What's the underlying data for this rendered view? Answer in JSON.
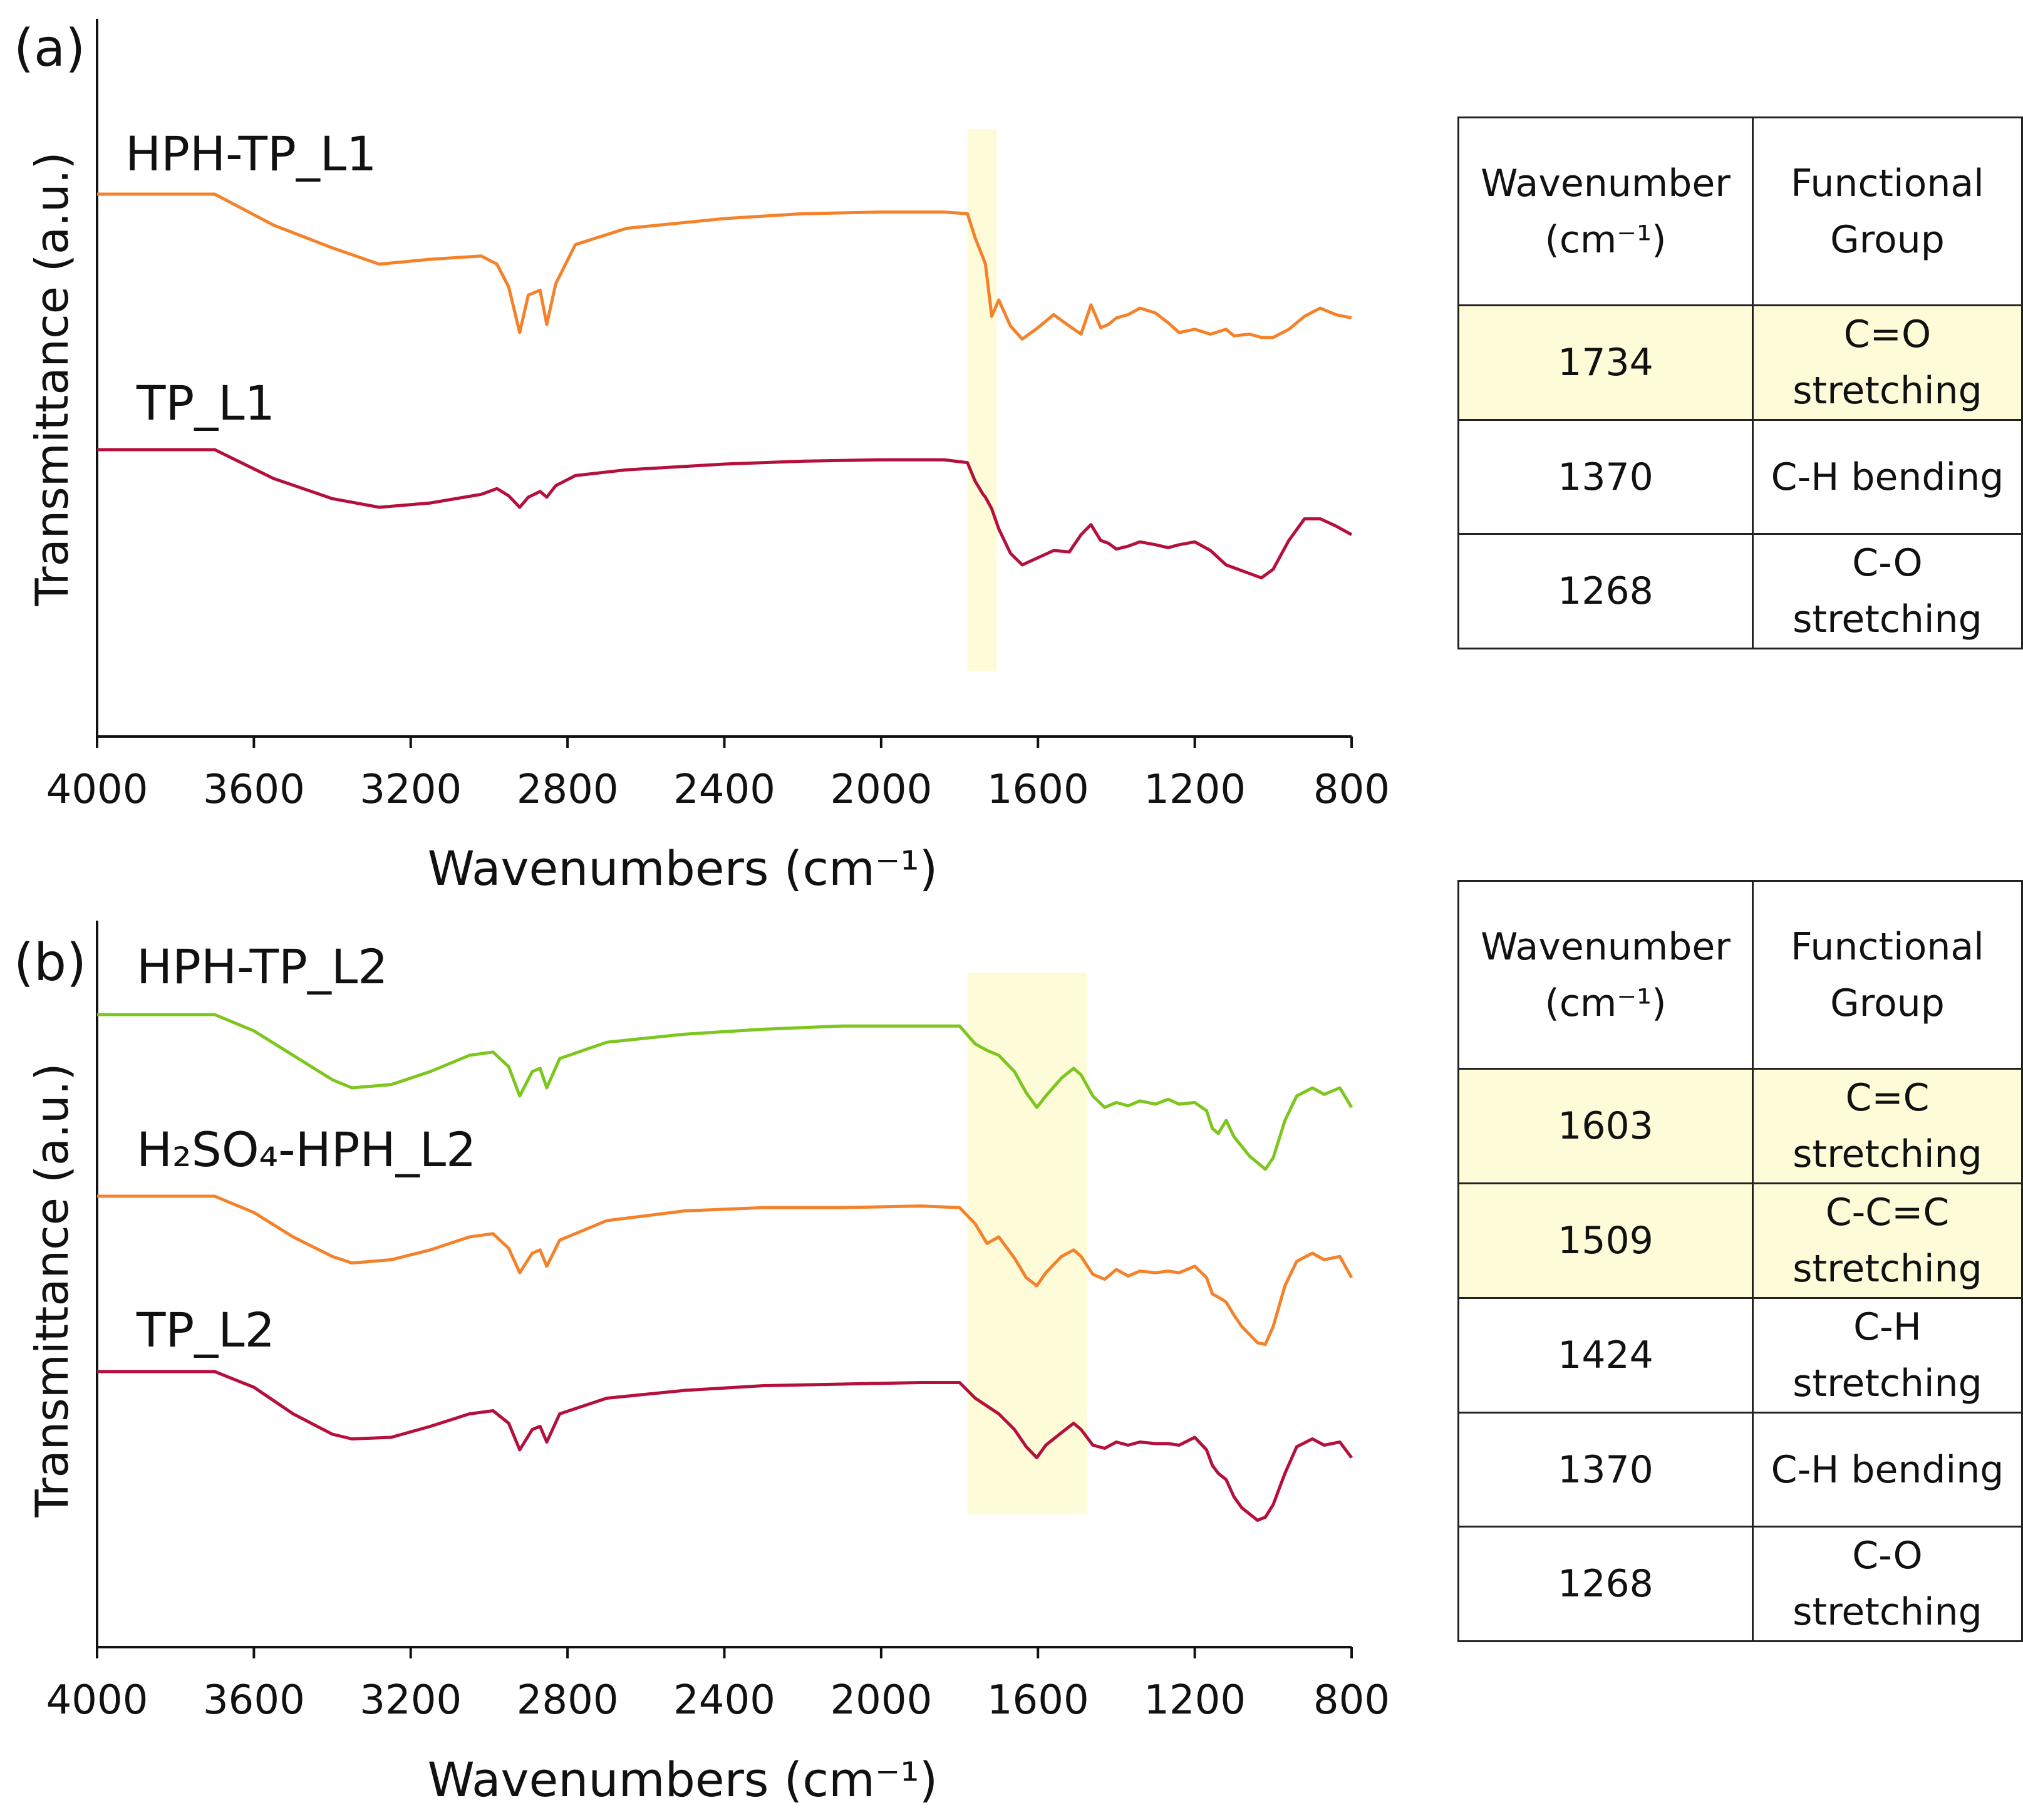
{
  "panels": [
    {
      "label": "(a)",
      "ylabel": "Transmittance (a.u.)",
      "xlabel": "Wavenumbers (cm⁻¹)",
      "xlim": [
        4000,
        800
      ],
      "xticks": [
        "4000",
        "3600",
        "3200",
        "2800",
        "2400",
        "2000",
        "1600",
        "1200",
        "800"
      ],
      "highlight_band": [
        1780,
        1705
      ],
      "series": [
        {
          "name": "HPH-TP_L1",
          "color": "#F5822A"
        },
        {
          "name": "TP_L1",
          "color": "#B5103C"
        }
      ],
      "table": {
        "header": [
          "Wavenumber (cm⁻¹)",
          "Functional Group"
        ],
        "rows": [
          {
            "wavenumber": "1734",
            "group": "C=O stretching",
            "highlight": true
          },
          {
            "wavenumber": "1370",
            "group": "C-H bending",
            "highlight": false
          },
          {
            "wavenumber": "1268",
            "group": "C-O stretching",
            "highlight": false
          }
        ]
      }
    },
    {
      "label": "(b)",
      "ylabel": "Transmittance (a.u.)",
      "xlabel": "Wavenumbers (cm⁻¹)",
      "xlim": [
        4000,
        800
      ],
      "xticks": [
        "4000",
        "3600",
        "3200",
        "2800",
        "2400",
        "2000",
        "1600",
        "1200",
        "800"
      ],
      "highlight_band": [
        1780,
        1475
      ],
      "series": [
        {
          "name": "HPH-TP_L2",
          "color": "#7DC61E"
        },
        {
          "name": "H₂SO₄-HPH_L2",
          "color": "#F5822A"
        },
        {
          "name": "TP_L2",
          "color": "#B5103C"
        }
      ],
      "table": {
        "header": [
          "Wavenumber (cm⁻¹)",
          "Functional Group"
        ],
        "rows": [
          {
            "wavenumber": "1603",
            "group": "C=C stretching",
            "highlight": true
          },
          {
            "wavenumber": "1509",
            "group": "C-C=C stretching",
            "highlight": true
          },
          {
            "wavenumber": "1424",
            "group": "C-H stretching",
            "highlight": false
          },
          {
            "wavenumber": "1370",
            "group": "C-H bending",
            "highlight": false
          },
          {
            "wavenumber": "1268",
            "group": "C-O stretching",
            "highlight": false
          }
        ]
      }
    }
  ],
  "chart_data": [
    {
      "type": "line",
      "title": "(a)",
      "xlabel": "Wavenumbers (cm⁻¹)",
      "ylabel": "Transmittance (a.u.)",
      "xlim": [
        4000,
        800
      ],
      "yunits": "arbitrary (stacked, offset traces)",
      "series": [
        {
          "name": "HPH-TP_L1",
          "x": [
            4000,
            3700,
            3550,
            3400,
            3280,
            3150,
            3020,
            2980,
            2950,
            2922,
            2900,
            2870,
            2853,
            2830,
            2780,
            2650,
            2400,
            2200,
            2000,
            1840,
            1780,
            1760,
            1740,
            1734,
            1718,
            1700,
            1670,
            1640,
            1600,
            1560,
            1520,
            1490,
            1465,
            1440,
            1420,
            1400,
            1370,
            1340,
            1300,
            1268,
            1240,
            1200,
            1160,
            1120,
            1100,
            1060,
            1030,
            1000,
            960,
            920,
            880,
            840,
            800
          ],
          "y": [
            0.95,
            0.95,
            0.76,
            0.62,
            0.52,
            0.55,
            0.57,
            0.52,
            0.38,
            0.1,
            0.33,
            0.36,
            0.15,
            0.4,
            0.64,
            0.74,
            0.8,
            0.83,
            0.84,
            0.84,
            0.83,
            0.68,
            0.56,
            0.52,
            0.2,
            0.3,
            0.14,
            0.06,
            0.13,
            0.21,
            0.14,
            0.09,
            0.27,
            0.13,
            0.15,
            0.19,
            0.21,
            0.25,
            0.22,
            0.16,
            0.1,
            0.12,
            0.09,
            0.12,
            0.08,
            0.09,
            0.07,
            0.07,
            0.12,
            0.2,
            0.25,
            0.21,
            0.19
          ]
        },
        {
          "name": "TP_L1",
          "x": [
            4000,
            3700,
            3550,
            3400,
            3280,
            3150,
            3020,
            2980,
            2950,
            2922,
            2900,
            2870,
            2853,
            2830,
            2780,
            2650,
            2400,
            2200,
            2000,
            1840,
            1780,
            1760,
            1740,
            1734,
            1718,
            1700,
            1670,
            1640,
            1600,
            1560,
            1520,
            1490,
            1465,
            1440,
            1420,
            1400,
            1370,
            1340,
            1300,
            1268,
            1240,
            1200,
            1160,
            1120,
            1100,
            1060,
            1030,
            1000,
            960,
            920,
            880,
            840,
            800
          ],
          "y": [
            0.95,
            0.95,
            0.75,
            0.61,
            0.55,
            0.58,
            0.64,
            0.68,
            0.63,
            0.55,
            0.62,
            0.66,
            0.62,
            0.7,
            0.77,
            0.81,
            0.85,
            0.87,
            0.88,
            0.88,
            0.86,
            0.73,
            0.64,
            0.62,
            0.54,
            0.4,
            0.23,
            0.15,
            0.2,
            0.25,
            0.24,
            0.36,
            0.43,
            0.32,
            0.3,
            0.26,
            0.28,
            0.31,
            0.29,
            0.27,
            0.29,
            0.31,
            0.25,
            0.15,
            0.13,
            0.09,
            0.06,
            0.12,
            0.32,
            0.47,
            0.47,
            0.42,
            0.36
          ]
        }
      ]
    },
    {
      "type": "line",
      "title": "(b)",
      "xlabel": "Wavenumbers (cm⁻¹)",
      "ylabel": "Transmittance (a.u.)",
      "xlim": [
        4000,
        800
      ],
      "yunits": "arbitrary (stacked, offset traces)",
      "series": [
        {
          "name": "HPH-TP_L2",
          "x": [
            4000,
            3700,
            3600,
            3500,
            3400,
            3350,
            3250,
            3150,
            3050,
            2990,
            2950,
            2922,
            2890,
            2870,
            2853,
            2820,
            2700,
            2500,
            2300,
            2100,
            1900,
            1800,
            1760,
            1730,
            1700,
            1660,
            1630,
            1603,
            1580,
            1540,
            1509,
            1490,
            1460,
            1430,
            1400,
            1370,
            1340,
            1300,
            1268,
            1240,
            1200,
            1170,
            1155,
            1140,
            1120,
            1100,
            1080,
            1060,
            1040,
            1020,
            1000,
            970,
            940,
            900,
            870,
            830,
            800
          ],
          "y": [
            0.95,
            0.95,
            0.85,
            0.7,
            0.55,
            0.5,
            0.52,
            0.6,
            0.7,
            0.72,
            0.63,
            0.45,
            0.6,
            0.62,
            0.5,
            0.68,
            0.78,
            0.83,
            0.86,
            0.88,
            0.88,
            0.88,
            0.77,
            0.73,
            0.7,
            0.6,
            0.47,
            0.38,
            0.45,
            0.56,
            0.62,
            0.58,
            0.45,
            0.38,
            0.41,
            0.39,
            0.42,
            0.4,
            0.43,
            0.4,
            0.41,
            0.36,
            0.25,
            0.22,
            0.3,
            0.2,
            0.14,
            0.08,
            0.04,
            0.0,
            0.07,
            0.3,
            0.45,
            0.5,
            0.46,
            0.5,
            0.38
          ]
        },
        {
          "name": "H₂SO₄-HPH_L2",
          "x": [
            4000,
            3700,
            3600,
            3500,
            3400,
            3350,
            3250,
            3150,
            3050,
            2990,
            2950,
            2922,
            2890,
            2870,
            2853,
            2820,
            2700,
            2500,
            2300,
            2100,
            1900,
            1800,
            1760,
            1730,
            1700,
            1660,
            1630,
            1603,
            1580,
            1540,
            1509,
            1490,
            1460,
            1430,
            1400,
            1370,
            1340,
            1300,
            1268,
            1240,
            1200,
            1170,
            1155,
            1140,
            1120,
            1100,
            1080,
            1060,
            1040,
            1020,
            1000,
            970,
            940,
            900,
            870,
            830,
            800
          ],
          "y": [
            0.95,
            0.95,
            0.85,
            0.7,
            0.58,
            0.54,
            0.56,
            0.62,
            0.7,
            0.72,
            0.63,
            0.48,
            0.6,
            0.62,
            0.52,
            0.68,
            0.8,
            0.86,
            0.88,
            0.88,
            0.89,
            0.88,
            0.78,
            0.66,
            0.7,
            0.57,
            0.45,
            0.4,
            0.48,
            0.58,
            0.62,
            0.58,
            0.47,
            0.44,
            0.5,
            0.46,
            0.49,
            0.48,
            0.49,
            0.48,
            0.52,
            0.45,
            0.35,
            0.33,
            0.3,
            0.22,
            0.15,
            0.1,
            0.05,
            0.04,
            0.15,
            0.4,
            0.55,
            0.6,
            0.56,
            0.58,
            0.45
          ]
        },
        {
          "name": "TP_L2",
          "x": [
            4000,
            3700,
            3600,
            3500,
            3400,
            3350,
            3250,
            3150,
            3050,
            2990,
            2950,
            2922,
            2890,
            2870,
            2853,
            2820,
            2700,
            2500,
            2300,
            2100,
            1900,
            1800,
            1760,
            1730,
            1700,
            1660,
            1630,
            1603,
            1580,
            1540,
            1509,
            1490,
            1460,
            1430,
            1400,
            1370,
            1340,
            1300,
            1268,
            1240,
            1200,
            1170,
            1155,
            1140,
            1120,
            1100,
            1080,
            1060,
            1040,
            1020,
            1000,
            970,
            940,
            900,
            870,
            830,
            800
          ],
          "y": [
            0.95,
            0.95,
            0.85,
            0.68,
            0.55,
            0.52,
            0.53,
            0.6,
            0.68,
            0.7,
            0.62,
            0.45,
            0.58,
            0.6,
            0.5,
            0.68,
            0.78,
            0.83,
            0.86,
            0.87,
            0.88,
            0.88,
            0.78,
            0.73,
            0.68,
            0.58,
            0.47,
            0.4,
            0.48,
            0.56,
            0.62,
            0.58,
            0.48,
            0.46,
            0.5,
            0.48,
            0.5,
            0.49,
            0.49,
            0.48,
            0.53,
            0.45,
            0.35,
            0.3,
            0.26,
            0.15,
            0.08,
            0.04,
            0.0,
            0.02,
            0.1,
            0.3,
            0.47,
            0.52,
            0.48,
            0.5,
            0.4
          ]
        }
      ]
    }
  ]
}
